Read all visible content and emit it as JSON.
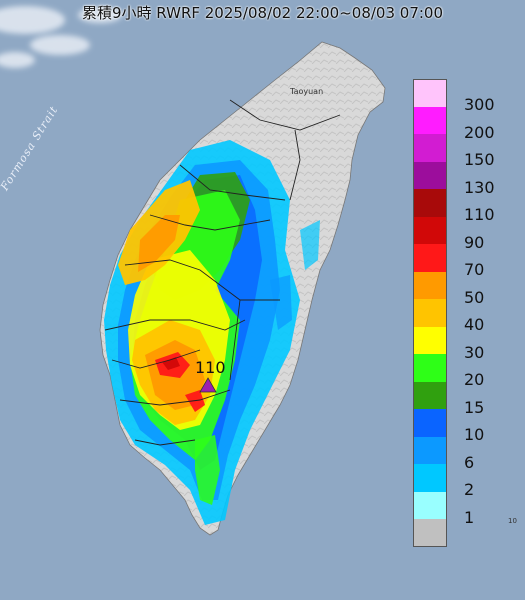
{
  "map": {
    "title": "累積9小時 RWRF 2025/08/02 22:00~08/03 07:00",
    "strait_label": "Formosa Strait",
    "city_label": "Taoyuan",
    "edge_label": "10",
    "max_value_label": "110",
    "colors": {
      "sea": "#8fa8c4",
      "land": "#d8d8d8",
      "marker": "#9b1fb0"
    }
  },
  "legend": {
    "items": [
      {
        "label": "300",
        "color": "#ffc4fb"
      },
      {
        "label": "200",
        "color": "#ff1cff"
      },
      {
        "label": "150",
        "color": "#d21cd2"
      },
      {
        "label": "130",
        "color": "#9c0d9c"
      },
      {
        "label": "110",
        "color": "#a80a0a"
      },
      {
        "label": "90",
        "color": "#d10808"
      },
      {
        "label": "70",
        "color": "#ff1818"
      },
      {
        "label": "50",
        "color": "#ff9a00"
      },
      {
        "label": "40",
        "color": "#ffc400"
      },
      {
        "label": "30",
        "color": "#ffff00"
      },
      {
        "label": "20",
        "color": "#2eff17"
      },
      {
        "label": "15",
        "color": "#30a00f"
      },
      {
        "label": "10",
        "color": "#0a64ff"
      },
      {
        "label": "6",
        "color": "#0c99ff"
      },
      {
        "label": "2",
        "color": "#00c8ff"
      },
      {
        "label": "1",
        "color": "#99ffff"
      },
      {
        "label": "",
        "color": "#c0c0c0"
      }
    ]
  }
}
